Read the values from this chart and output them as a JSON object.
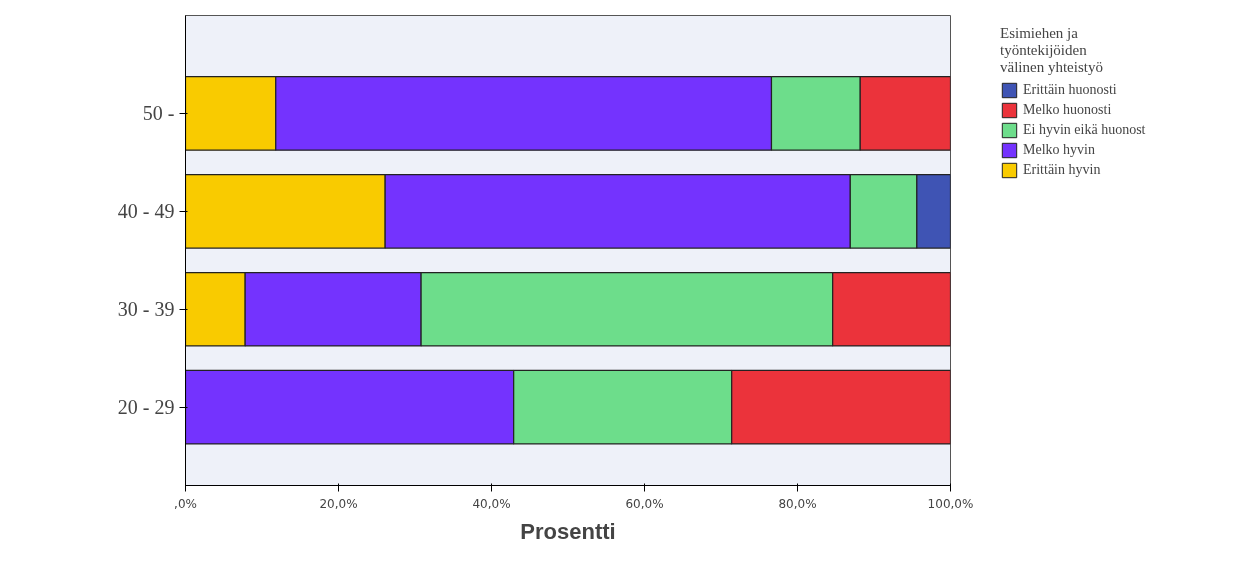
{
  "chart_data": {
    "type": "bar",
    "orientation": "horizontal",
    "stacked": true,
    "categories": [
      "50 -",
      "40 - 49",
      "30 - 39",
      "20 - 29"
    ],
    "xlabel": "Prosentti",
    "legend_title": "Esimiehen ja\ntyöntekijöiden\nvälinen yhteistyö",
    "xlim": [
      0,
      100
    ],
    "xticks": [
      {
        "value": 0,
        "label": ",0%"
      },
      {
        "value": 20,
        "label": "20,0%"
      },
      {
        "value": 40,
        "label": "40,0%"
      },
      {
        "value": 60,
        "label": "60,0%"
      },
      {
        "value": 80,
        "label": "80,0%"
      },
      {
        "value": 100,
        "label": "100,0%"
      }
    ],
    "grid": false,
    "legend": "right",
    "series": [
      {
        "name": "Erittäin hyvin",
        "color": "#f9cb00",
        "values": [
          11.8,
          26.1,
          7.8,
          0
        ]
      },
      {
        "name": "Melko hyvin",
        "color": "#7433fe",
        "values": [
          64.8,
          60.8,
          23.0,
          42.9
        ]
      },
      {
        "name": "Ei hyvin eikä huonost",
        "color": "#6ddd8b",
        "values": [
          11.6,
          8.7,
          53.8,
          28.5
        ]
      },
      {
        "name": "Melko huonosti",
        "color": "#eb333b",
        "values": [
          11.8,
          0,
          15.4,
          28.6
        ]
      },
      {
        "name": "Erittäin huonosti",
        "color": "#3f54b4",
        "values": [
          0,
          4.4,
          0,
          0
        ]
      }
    ]
  }
}
